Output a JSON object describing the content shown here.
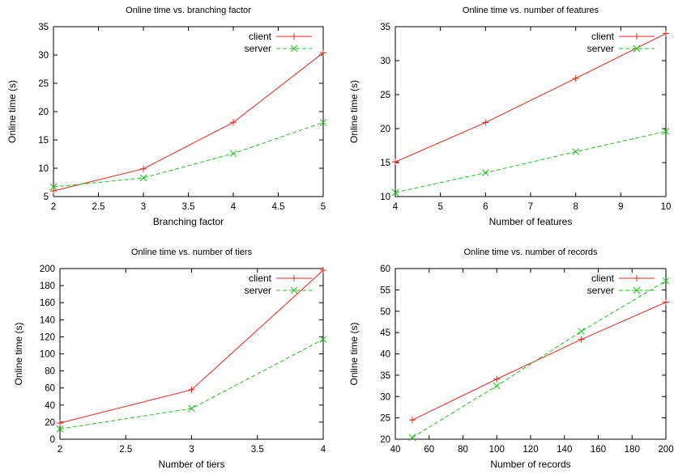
{
  "colors": {
    "client": "#e8261a",
    "server": "#19c419"
  },
  "chart_data": [
    {
      "type": "line",
      "title": "Online time vs. branching factor",
      "xlabel": "Branching factor",
      "ylabel": "Online time (s)",
      "xlim": [
        2,
        5
      ],
      "ylim": [
        5,
        35
      ],
      "xticks": [
        2,
        2.5,
        3,
        3.5,
        4,
        4.5,
        5
      ],
      "xtick_labels": [
        "2",
        "2.5",
        "3",
        "3.5",
        "4",
        "4.5",
        "5"
      ],
      "yticks": [
        5,
        10,
        15,
        20,
        25,
        30,
        35
      ],
      "ytick_labels": [
        "5",
        "10",
        "15",
        "20",
        "25",
        "30",
        "35"
      ],
      "grid": false,
      "legend": "top-right",
      "series": [
        {
          "name": "client",
          "x": [
            2,
            3,
            4,
            5
          ],
          "y": [
            6,
            9.9,
            18.1,
            30.4
          ]
        },
        {
          "name": "server",
          "x": [
            2,
            3,
            4,
            5
          ],
          "y": [
            6.7,
            8.3,
            12.6,
            18.1
          ]
        }
      ]
    },
    {
      "type": "line",
      "title": "Online time vs. number of features",
      "xlabel": "Number of features",
      "ylabel": "Online time (s)",
      "xlim": [
        4,
        10
      ],
      "ylim": [
        10,
        35
      ],
      "xticks": [
        4,
        5,
        6,
        7,
        8,
        9,
        10
      ],
      "xtick_labels": [
        "4",
        "5",
        "6",
        "7",
        "8",
        "9",
        "10"
      ],
      "yticks": [
        10,
        15,
        20,
        25,
        30,
        35
      ],
      "ytick_labels": [
        "10",
        "15",
        "20",
        "25",
        "30",
        "35"
      ],
      "grid": false,
      "legend": "top-right",
      "series": [
        {
          "name": "client",
          "x": [
            4,
            6,
            8,
            10
          ],
          "y": [
            15.1,
            20.9,
            27.4,
            34
          ]
        },
        {
          "name": "server",
          "x": [
            4,
            6,
            8,
            10
          ],
          "y": [
            10.6,
            13.5,
            16.6,
            19.6
          ]
        }
      ]
    },
    {
      "type": "line",
      "title": "Online time vs. number of tiers",
      "xlabel": "Number of tiers",
      "ylabel": "Online time (s)",
      "xlim": [
        2,
        4
      ],
      "ylim": [
        0,
        200
      ],
      "xticks": [
        2,
        2.5,
        3,
        3.5,
        4
      ],
      "xtick_labels": [
        "2",
        "2.5",
        "3",
        "3.5",
        "4"
      ],
      "yticks": [
        0,
        20,
        40,
        60,
        80,
        100,
        120,
        140,
        160,
        180,
        200
      ],
      "ytick_labels": [
        "0",
        "20",
        "40",
        "60",
        "80",
        "100",
        "120",
        "140",
        "160",
        "180",
        "200"
      ],
      "grid": false,
      "legend": "top-right",
      "series": [
        {
          "name": "client",
          "x": [
            2,
            3,
            4
          ],
          "y": [
            19,
            58,
            198
          ]
        },
        {
          "name": "server",
          "x": [
            2,
            3,
            4
          ],
          "y": [
            12,
            36,
            117
          ]
        }
      ]
    },
    {
      "type": "line",
      "title": "Online time vs. number of records",
      "xlabel": "Number of records",
      "ylabel": "Online time (s)",
      "xlim": [
        40,
        200
      ],
      "ylim": [
        20,
        60
      ],
      "xticks": [
        40,
        60,
        80,
        100,
        120,
        140,
        160,
        180,
        200
      ],
      "xtick_labels": [
        "40",
        "60",
        "80",
        "100",
        "120",
        "140",
        "160",
        "180",
        "200"
      ],
      "yticks": [
        20,
        25,
        30,
        35,
        40,
        45,
        50,
        55,
        60
      ],
      "ytick_labels": [
        "20",
        "25",
        "30",
        "35",
        "40",
        "45",
        "50",
        "55",
        "60"
      ],
      "grid": false,
      "legend": "top-right",
      "series": [
        {
          "name": "client",
          "x": [
            50,
            100,
            150,
            200
          ],
          "y": [
            24.5,
            34.1,
            43.4,
            52.1
          ]
        },
        {
          "name": "server",
          "x": [
            50,
            100,
            150,
            200
          ],
          "y": [
            20.4,
            32.5,
            45.3,
            57.1
          ]
        }
      ]
    }
  ]
}
